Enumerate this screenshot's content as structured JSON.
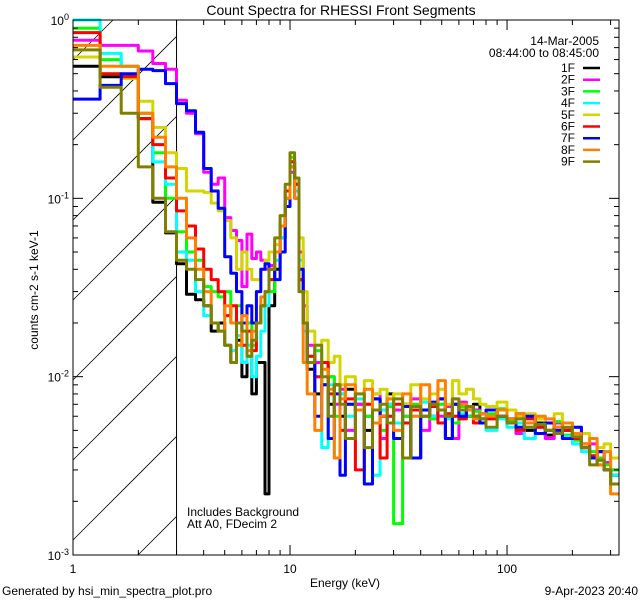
{
  "chart_data": {
    "type": "line",
    "title": "Count Spectra for RHESSI Front Segments",
    "xlabel": "Energy (keV)",
    "ylabel": "counts cm-2 s-1 keV-1",
    "xscale": "log",
    "yscale": "log",
    "xlim": [
      1,
      328
    ],
    "ylim": [
      0.001,
      1
    ],
    "x_tick_labels": [
      {
        "value": 1,
        "label": "1"
      },
      {
        "value": 10,
        "label": "10"
      },
      {
        "value": 100,
        "label": "100"
      }
    ],
    "y_tick_labels": [
      {
        "value": 1,
        "base": "10",
        "exp": "0"
      },
      {
        "value": 0.1,
        "base": "10",
        "exp": "-1"
      },
      {
        "value": 0.01,
        "base": "10",
        "exp": "-2"
      },
      {
        "value": 0.001,
        "base": "10",
        "exp": "-3"
      }
    ],
    "shaded_region_keV": [
      1,
      3
    ],
    "legend": {
      "placement": "top-right",
      "date": "14-Mar-2005",
      "time_range": "08:44:00 to 08:45:00"
    },
    "annotations": [
      "Includes Background",
      "Att A0, FDecim 2"
    ],
    "bin_edges_keV": [
      1,
      1.333,
      1.667,
      2,
      2.333,
      2.667,
      3,
      3.333,
      3.667,
      4,
      4.333,
      4.667,
      5,
      5.333,
      5.667,
      6,
      6.333,
      6.667,
      7,
      7.333,
      7.667,
      8,
      8.5,
      9,
      9.5,
      10,
      10.5,
      11,
      11.5,
      12,
      13,
      14,
      15,
      16,
      17,
      18,
      20,
      22,
      24,
      26,
      28,
      30,
      33,
      36,
      40,
      44,
      48,
      52,
      56,
      60,
      65,
      70,
      75,
      80,
      90,
      100,
      110,
      120,
      135,
      150,
      165,
      180,
      200,
      220,
      240,
      260,
      280,
      300,
      328
    ],
    "series": [
      {
        "name": "1F",
        "color": "#000000",
        "values": [
          0.55,
          0.48,
          0.48,
          0.28,
          0.095,
          0.064,
          0.043,
          0.029,
          0.027,
          0.025,
          0.018,
          0.02,
          0.015,
          0.012,
          0.016,
          0.01,
          0.013,
          0.008,
          0.012,
          0.012,
          0.0022,
          0.025,
          0.04,
          0.06,
          0.1,
          0.16,
          0.11,
          0.035,
          0.02,
          0.011,
          0.008,
          0.012,
          0.007,
          0.009,
          0.006,
          0.0085,
          0.007,
          0.005,
          0.0075,
          0.006,
          0.008,
          0.0055,
          0.007,
          0.0035,
          0.0065,
          0.006,
          0.0075,
          0.0045,
          0.007,
          0.0065,
          0.006,
          0.007,
          0.0055,
          0.006,
          0.0065,
          0.0058,
          0.0062,
          0.005,
          0.0055,
          0.0047,
          0.0055,
          0.005,
          0.0045,
          0.004,
          0.0035,
          0.0038,
          0.003,
          0.0028
        ]
      },
      {
        "name": "2F",
        "color": "#ff00ff",
        "values": [
          0.77,
          0.72,
          0.72,
          0.67,
          0.57,
          0.53,
          0.355,
          0.3,
          0.23,
          0.14,
          0.12,
          0.13,
          0.078,
          0.066,
          0.058,
          0.032,
          0.063,
          0.046,
          0.05,
          0.045,
          0.04,
          0.042,
          0.05,
          0.07,
          0.1,
          0.14,
          0.12,
          0.05,
          0.025,
          0.015,
          0.012,
          0.009,
          0.01,
          0.007,
          0.0085,
          0.005,
          0.007,
          0.006,
          0.008,
          0.0045,
          0.007,
          0.0065,
          0.006,
          0.0075,
          0.005,
          0.007,
          0.006,
          0.0068,
          0.0045,
          0.0072,
          0.006,
          0.0065,
          0.0058,
          0.006,
          0.0065,
          0.0055,
          0.0048,
          0.006,
          0.0052,
          0.0045,
          0.0055,
          0.005,
          0.0048,
          0.004,
          0.0042,
          0.0035,
          0.0033,
          0.003
        ]
      },
      {
        "name": "3F",
        "color": "#00ff00",
        "values": [
          0.9,
          0.6,
          0.55,
          0.3,
          0.18,
          0.1,
          0.065,
          0.05,
          0.045,
          0.032,
          0.03,
          0.028,
          0.03,
          0.02,
          0.025,
          0.018,
          0.02,
          0.015,
          0.02,
          0.025,
          0.03,
          0.03,
          0.045,
          0.06,
          0.1,
          0.17,
          0.12,
          0.04,
          0.02,
          0.013,
          0.014,
          0.009,
          0.01,
          0.006,
          0.008,
          0.007,
          0.0065,
          0.006,
          0.0075,
          0.005,
          0.0068,
          0.0015,
          0.006,
          0.007,
          0.0065,
          0.0058,
          0.007,
          0.0062,
          0.0055,
          0.0068,
          0.006,
          0.0064,
          0.0058,
          0.0062,
          0.0066,
          0.0056,
          0.006,
          0.0052,
          0.0058,
          0.005,
          0.0056,
          0.0047,
          0.0044,
          0.0042,
          0.0038,
          0.0035,
          0.0032,
          0.003
        ]
      },
      {
        "name": "4F",
        "color": "#00ffff",
        "values": [
          1.0,
          0.65,
          0.55,
          0.3,
          0.16,
          0.12,
          0.05,
          0.045,
          0.03,
          0.022,
          0.02,
          0.018,
          0.015,
          0.014,
          0.017,
          0.012,
          0.015,
          0.01,
          0.013,
          0.018,
          0.025,
          0.035,
          0.045,
          0.06,
          0.09,
          0.15,
          0.11,
          0.045,
          0.018,
          0.012,
          0.01,
          0.004,
          0.009,
          0.0035,
          0.008,
          0.006,
          0.0075,
          0.007,
          0.0028,
          0.0065,
          0.007,
          0.0055,
          0.0068,
          0.006,
          0.0072,
          0.006,
          0.0065,
          0.0058,
          0.006,
          0.0062,
          0.0066,
          0.006,
          0.0055,
          0.005,
          0.0058,
          0.0052,
          0.0055,
          0.0045,
          0.006,
          0.005,
          0.0048,
          0.0046,
          0.0042,
          0.0038,
          0.0036,
          0.0034,
          0.003,
          0.0028
        ]
      },
      {
        "name": "5F",
        "color": "#d4d400",
        "values": [
          0.62,
          0.5,
          0.47,
          0.35,
          0.25,
          0.18,
          0.147,
          0.11,
          0.11,
          0.108,
          0.094,
          0.085,
          0.075,
          0.06,
          0.04,
          0.05,
          0.04,
          0.035,
          0.035,
          0.04,
          0.045,
          0.05,
          0.055,
          0.08,
          0.1,
          0.16,
          0.12,
          0.06,
          0.03,
          0.018,
          0.015,
          0.016,
          0.012,
          0.013,
          0.009,
          0.01,
          0.008,
          0.0095,
          0.008,
          0.0085,
          0.0075,
          0.008,
          0.007,
          0.009,
          0.0075,
          0.008,
          0.0085,
          0.007,
          0.0095,
          0.008,
          0.0085,
          0.0075,
          0.007,
          0.0068,
          0.0072,
          0.0065,
          0.006,
          0.0062,
          0.0058,
          0.0055,
          0.0062,
          0.0055,
          0.0052,
          0.0048,
          0.0045,
          0.004,
          0.0042,
          0.0035
        ]
      },
      {
        "name": "6F",
        "color": "#ff0000",
        "values": [
          0.85,
          0.5,
          0.48,
          0.28,
          0.2,
          0.13,
          0.085,
          0.07,
          0.052,
          0.04,
          0.035,
          0.03,
          0.022,
          0.025,
          0.02,
          0.015,
          0.018,
          0.014,
          0.02,
          0.025,
          0.03,
          0.035,
          0.05,
          0.07,
          0.11,
          0.16,
          0.12,
          0.035,
          0.02,
          0.013,
          0.01,
          0.012,
          0.008,
          0.009,
          0.005,
          0.0075,
          0.003,
          0.007,
          0.0065,
          0.0035,
          0.006,
          0.007,
          0.0055,
          0.0065,
          0.006,
          0.0068,
          0.0055,
          0.0062,
          0.006,
          0.0058,
          0.0065,
          0.0055,
          0.0062,
          0.0058,
          0.006,
          0.0055,
          0.005,
          0.0058,
          0.0052,
          0.005,
          0.0048,
          0.005,
          0.0045,
          0.0042,
          0.0036,
          0.0032,
          0.003,
          0.0025
        ]
      },
      {
        "name": "7F",
        "color": "#0000ff",
        "values": [
          0.36,
          0.43,
          0.5,
          0.53,
          0.52,
          0.44,
          0.34,
          0.31,
          0.235,
          0.147,
          0.11,
          0.088,
          0.047,
          0.038,
          0.03,
          0.02,
          0.025,
          0.02,
          0.03,
          0.04,
          0.043,
          0.04,
          0.035,
          0.05,
          0.09,
          0.15,
          0.1,
          0.04,
          0.02,
          0.012,
          0.006,
          0.009,
          0.0045,
          0.008,
          0.0028,
          0.007,
          0.0065,
          0.0025,
          0.0075,
          0.006,
          0.0055,
          0.0045,
          0.0068,
          0.0035,
          0.0065,
          0.0072,
          0.0075,
          0.0045,
          0.007,
          0.006,
          0.0068,
          0.006,
          0.0055,
          0.0065,
          0.006,
          0.0058,
          0.0052,
          0.006,
          0.0048,
          0.0055,
          0.005,
          0.0045,
          0.0052,
          0.004,
          0.0035,
          0.0038,
          0.003,
          0.0025
        ]
      },
      {
        "name": "8F",
        "color": "#ff8000",
        "values": [
          0.72,
          0.55,
          0.55,
          0.3,
          0.22,
          0.15,
          0.1,
          0.06,
          0.04,
          0.03,
          0.02,
          0.018,
          0.025,
          0.02,
          0.015,
          0.022,
          0.014,
          0.018,
          0.02,
          0.028,
          0.03,
          0.04,
          0.05,
          0.07,
          0.1,
          0.15,
          0.1,
          0.03,
          0.012,
          0.008,
          0.005,
          0.011,
          0.0085,
          0.0035,
          0.0075,
          0.009,
          0.0065,
          0.0085,
          0.0055,
          0.006,
          0.0075,
          0.005,
          0.008,
          0.006,
          0.009,
          0.007,
          0.0095,
          0.006,
          0.0075,
          0.007,
          0.0065,
          0.0058,
          0.0062,
          0.006,
          0.0065,
          0.0058,
          0.0062,
          0.0055,
          0.006,
          0.0058,
          0.0052,
          0.0055,
          0.0048,
          0.0042,
          0.0045,
          0.0032,
          0.0038,
          0.0022
        ]
      },
      {
        "name": "9F",
        "color": "#808000",
        "values": [
          0.68,
          0.42,
          0.3,
          0.15,
          0.1,
          0.065,
          0.045,
          0.04,
          0.035,
          0.025,
          0.02,
          0.018,
          0.015,
          0.012,
          0.02,
          0.018,
          0.013,
          0.016,
          0.02,
          0.025,
          0.03,
          0.04,
          0.06,
          0.08,
          0.12,
          0.18,
          0.13,
          0.03,
          0.02,
          0.012,
          0.015,
          0.01,
          0.006,
          0.009,
          0.007,
          0.0045,
          0.008,
          0.004,
          0.0065,
          0.007,
          0.0055,
          0.0075,
          0.0035,
          0.0068,
          0.006,
          0.007,
          0.0065,
          0.006,
          0.0075,
          0.0065,
          0.0068,
          0.006,
          0.0058,
          0.0052,
          0.006,
          0.0055,
          0.0058,
          0.0052,
          0.0054,
          0.005,
          0.0048,
          0.0052,
          0.0046,
          0.004,
          0.0032,
          0.0034,
          0.003,
          0.0025
        ]
      }
    ]
  },
  "footer": {
    "generated_by": "Generated by hsi_min_spectra_plot.pro",
    "timestamp": "9-Apr-2023 20:40"
  }
}
